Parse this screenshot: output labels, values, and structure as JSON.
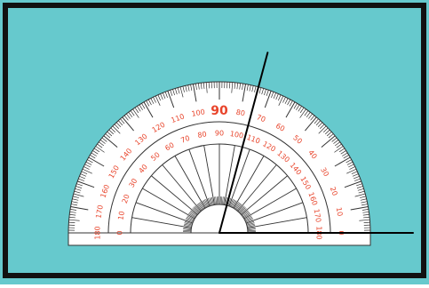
{
  "protractor": {
    "outer_scale_labels": [
      "0",
      "10",
      "20",
      "30",
      "40",
      "50",
      "60",
      "70",
      "80",
      "90",
      "100",
      "110",
      "120",
      "130",
      "140",
      "150",
      "160",
      "170",
      "180"
    ],
    "inner_scale_labels": [
      "180",
      "170",
      "160",
      "150",
      "140",
      "130",
      "120",
      "110",
      "100",
      "90",
      "80",
      "70",
      "60",
      "50",
      "40",
      "30",
      "20",
      "10",
      "0"
    ]
  },
  "angle": {
    "ray_a_degrees": 0,
    "ray_b_degrees": 75
  },
  "colors": {
    "background": "#66c9cd",
    "frame": "#111111",
    "protractor_fill": "#ffffff",
    "scale_lines": "#333333",
    "scale_numbers": "#e8442b",
    "rays": "#000000"
  }
}
